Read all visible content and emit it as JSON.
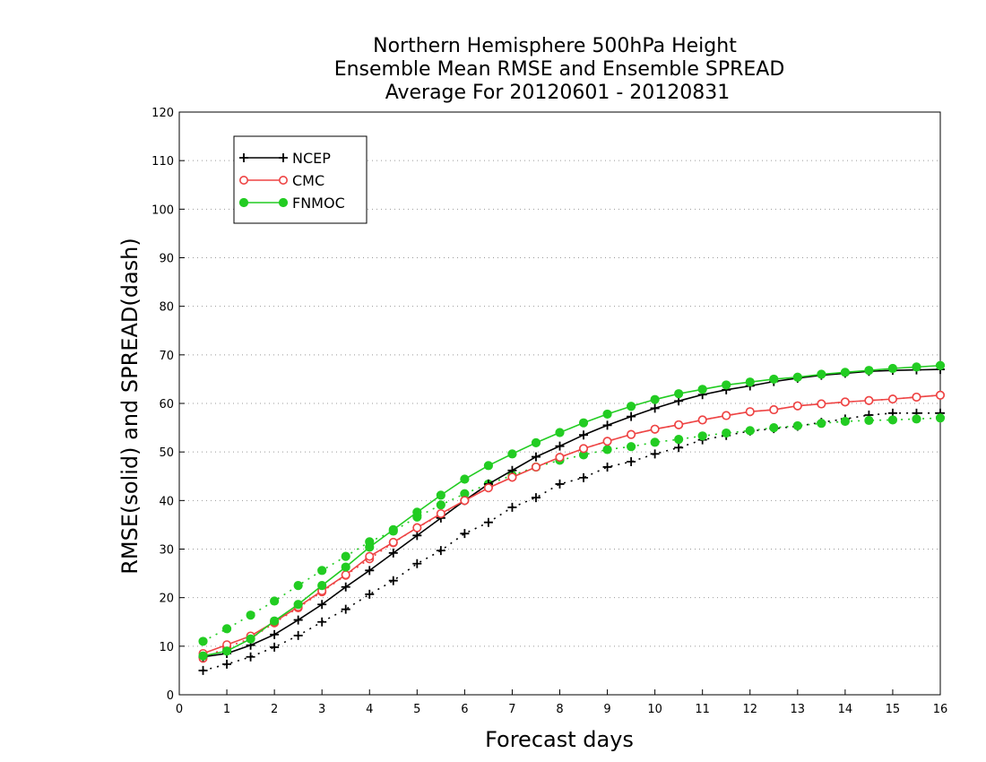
{
  "chart_data": {
    "type": "line",
    "title_lines": [
      "Northern Hemisphere 500hPa Height",
      "Ensemble Mean RMSE and Ensemble SPREAD",
      "Average For 20120601 - 20120831"
    ],
    "xlabel": "Forecast days",
    "ylabel": "RMSE(solid) and SPREAD(dash)",
    "xlim": [
      0,
      16
    ],
    "ylim": [
      0,
      120
    ],
    "xticks": [
      "0",
      "1",
      "2",
      "3",
      "4",
      "5",
      "6",
      "7",
      "8",
      "9",
      "10",
      "11",
      "12",
      "13",
      "14",
      "15",
      "16"
    ],
    "yticks": [
      "0",
      "10",
      "20",
      "30",
      "40",
      "50",
      "60",
      "70",
      "80",
      "90",
      "100",
      "110",
      "120"
    ],
    "grid": "horizontal dotted",
    "legend_position": "top-left",
    "x": [
      0.5,
      1,
      1.5,
      2,
      2.5,
      3,
      3.5,
      4,
      4.5,
      5,
      5.5,
      6,
      6.5,
      7,
      7.5,
      8,
      8.5,
      9,
      9.5,
      10,
      10.5,
      11,
      11.5,
      12,
      12.5,
      13,
      13.5,
      14,
      14.5,
      15,
      15.5,
      16
    ],
    "series": [
      {
        "name": "NCEP",
        "color": "#000000",
        "marker": "plus",
        "rmse": [
          7.8,
          8.5,
          10.2,
          12.4,
          15.4,
          18.6,
          22.2,
          25.6,
          29.2,
          32.8,
          36.4,
          40.0,
          43.4,
          46.2,
          49.0,
          51.2,
          53.5,
          55.5,
          57.3,
          59.0,
          60.5,
          61.8,
          62.8,
          63.6,
          64.5,
          65.2,
          65.8,
          66.2,
          66.6,
          66.8,
          66.9,
          67.0
        ],
        "spread": [
          5.0,
          6.3,
          7.8,
          9.8,
          12.2,
          15.0,
          17.6,
          20.7,
          23.5,
          27.0,
          29.7,
          33.2,
          35.5,
          38.6,
          40.6,
          43.4,
          44.7,
          46.9,
          48.0,
          49.6,
          50.9,
          52.5,
          53.4,
          54.3,
          54.8,
          55.3,
          56.1,
          56.8,
          57.6,
          58.0,
          58.0,
          58.0
        ]
      },
      {
        "name": "CMC",
        "color": "#ee4444",
        "marker": "open-circle",
        "rmse": [
          8.5,
          10.3,
          12.1,
          15.0,
          18.1,
          21.4,
          24.7,
          28.5,
          31.4,
          34.4,
          37.3,
          40.0,
          42.6,
          44.8,
          46.9,
          48.9,
          50.7,
          52.2,
          53.6,
          54.7,
          55.6,
          56.6,
          57.5,
          58.3,
          58.7,
          59.5,
          59.9,
          60.3,
          60.6,
          60.9,
          61.3,
          61.7
        ],
        "spread": [
          7.5,
          9.8,
          11.6,
          14.8,
          17.9,
          21.2,
          24.6,
          28.0,
          31.3,
          34.4,
          37.1,
          40.0,
          42.7,
          44.8,
          46.9,
          48.9,
          50.7,
          52.2,
          53.6,
          54.7,
          55.6,
          56.6,
          57.5,
          58.3,
          58.7,
          59.5,
          59.9,
          60.3,
          60.6,
          60.9,
          61.3,
          61.7
        ]
      },
      {
        "name": "FNMOC",
        "color": "#22cc22",
        "marker": "filled-circle",
        "rmse": [
          8.0,
          9.0,
          11.5,
          15.2,
          18.6,
          22.5,
          26.3,
          30.4,
          34.0,
          37.6,
          41.1,
          44.4,
          47.2,
          49.6,
          51.9,
          54.0,
          56.0,
          57.8,
          59.4,
          60.8,
          62.0,
          62.9,
          63.8,
          64.4,
          65.0,
          65.4,
          66.0,
          66.4,
          66.8,
          67.2,
          67.5,
          67.8
        ],
        "spread": [
          11.0,
          13.6,
          16.4,
          19.3,
          22.5,
          25.6,
          28.5,
          31.5,
          33.7,
          36.6,
          39.1,
          41.4,
          43.4,
          45.2,
          46.9,
          48.3,
          49.4,
          50.5,
          51.1,
          52.0,
          52.6,
          53.3,
          53.9,
          54.4,
          55.0,
          55.4,
          55.9,
          56.3,
          56.5,
          56.6,
          56.8,
          57.0
        ]
      }
    ]
  }
}
